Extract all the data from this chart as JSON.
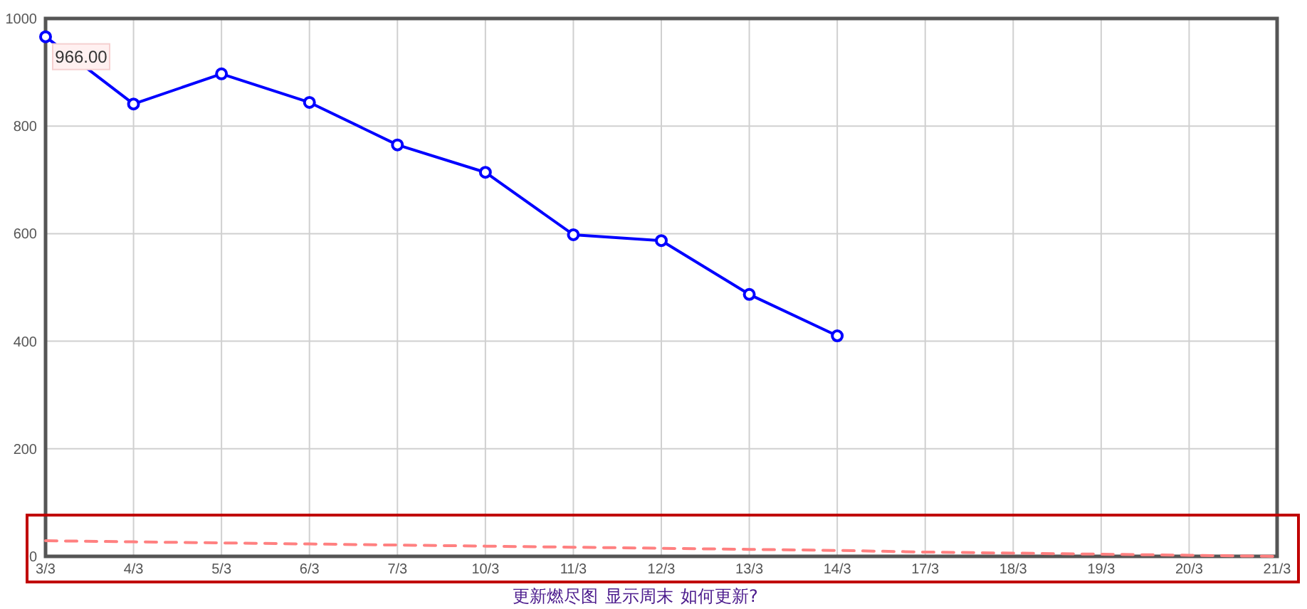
{
  "chart_data": {
    "type": "line",
    "categories": [
      "3/3",
      "4/3",
      "5/3",
      "6/3",
      "7/3",
      "10/3",
      "11/3",
      "12/3",
      "13/3",
      "14/3",
      "17/3",
      "18/3",
      "19/3",
      "20/3",
      "21/3"
    ],
    "series": [
      {
        "color": "#ff8080",
        "line_style": "dashed",
        "marker": "none",
        "values": [
          29,
          27,
          25,
          23,
          21,
          19,
          17,
          15,
          13,
          11,
          8,
          6,
          4,
          2,
          0
        ]
      },
      {
        "color": "#0000ff",
        "line_style": "solid",
        "marker": "circle",
        "values": [
          966,
          841,
          897,
          844,
          765,
          714,
          598,
          587,
          487,
          410,
          null,
          null,
          null,
          null,
          null
        ],
        "value_labels": [
          "966.00",
          null,
          null,
          null,
          null,
          null,
          null,
          null,
          null,
          null,
          null,
          null,
          null,
          null,
          null
        ]
      }
    ],
    "ylim": [
      0,
      1000
    ],
    "yticks": [
      0,
      200,
      400,
      600,
      800,
      1000
    ],
    "grid": true,
    "annotations": [
      "更新燃尽图",
      "显示周末",
      "如何更新?"
    ]
  }
}
